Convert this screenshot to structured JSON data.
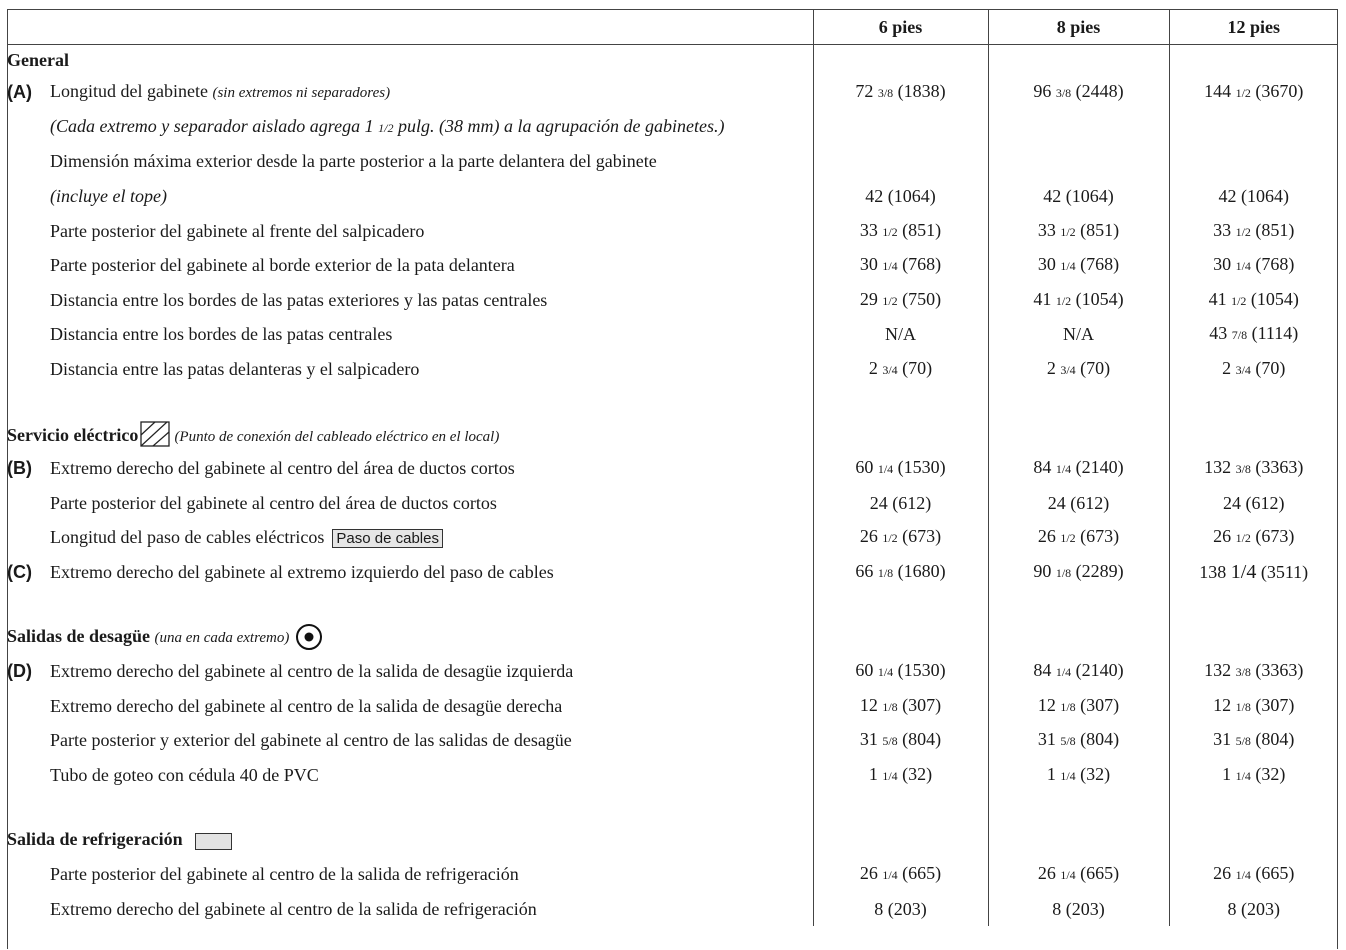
{
  "header": {
    "columns": [
      "6 pies",
      "8 pies",
      "12 pies"
    ]
  },
  "general": {
    "title": "General",
    "cabinet_length": {
      "letter": "(A)",
      "label": "Longitud del gabinete",
      "note": "(sin extremos ni separadores)",
      "values": [
        {
          "whole": "72",
          "frac": "3/8",
          "mm": "(1838)"
        },
        {
          "whole": "96",
          "frac": "3/8",
          "mm": "(2448)"
        },
        {
          "whole": "144",
          "frac": "1/2",
          "mm": "(3670)"
        }
      ]
    },
    "extreme_note": {
      "pre": "(Cada extremo y separador aislado agrega 1",
      "frac": "1/2",
      "post": "pulg. (38 mm) a la agrupación de gabinetes.)"
    },
    "max_dimension": {
      "label": "Dimensión máxima exterior desde la parte posterior a la parte delantera del gabinete",
      "note": "(incluye el tope)",
      "values": [
        "42 (1064)",
        "42 (1064)",
        "42 (1064)"
      ]
    },
    "rows": [
      {
        "label": "Parte posterior del gabinete al frente del salpicadero",
        "values": [
          {
            "whole": "33",
            "frac": "1/2",
            "mm": "(851)"
          },
          {
            "whole": "33",
            "frac": "1/2",
            "mm": "(851)"
          },
          {
            "whole": "33",
            "frac": "1/2",
            "mm": "(851)"
          }
        ]
      },
      {
        "label": "Parte posterior del gabinete al borde exterior de la pata delantera",
        "values": [
          {
            "whole": "30",
            "frac": "1/4",
            "mm": "(768)"
          },
          {
            "whole": "30",
            "frac": "1/4",
            "mm": "(768)"
          },
          {
            "whole": "30",
            "frac": "1/4",
            "mm": "(768)"
          }
        ]
      },
      {
        "label": "Distancia entre los bordes de las patas exteriores y las patas centrales",
        "values": [
          {
            "whole": "29",
            "frac": "1/2",
            "mm": "(750)"
          },
          {
            "whole": "41",
            "frac": "1/2",
            "mm": "(1054)"
          },
          {
            "whole": "41",
            "frac": "1/2",
            "mm": "(1054)"
          }
        ]
      },
      {
        "label": "Distancia entre los bordes de las patas centrales",
        "values": [
          {
            "whole": "N/A",
            "frac": "",
            "mm": ""
          },
          {
            "whole": "N/A",
            "frac": "",
            "mm": ""
          },
          {
            "whole": "43",
            "frac": "7/8",
            "mm": "(1114)"
          }
        ]
      },
      {
        "label": "Distancia entre las patas delanteras y el salpicadero",
        "values": [
          {
            "whole": "2",
            "frac": "3/4",
            "mm": "(70)"
          },
          {
            "whole": "2",
            "frac": "3/4",
            "mm": "(70)"
          },
          {
            "whole": "2",
            "frac": "3/4",
            "mm": "(70)"
          }
        ]
      }
    ]
  },
  "electrical": {
    "title": "Servicio eléctrico",
    "icon": "hatched-square-icon",
    "note": "(Punto de conexión del cableado eléctrico en el local)",
    "rows": [
      {
        "letter": "(B)",
        "label": "Extremo derecho del gabinete al centro del área de ductos cortos",
        "values": [
          {
            "whole": "60",
            "frac": "1/4",
            "mm": "(1530)"
          },
          {
            "whole": "84",
            "frac": "1/4",
            "mm": "(2140)"
          },
          {
            "whole": "132",
            "frac": "3/8",
            "mm": "(3363)"
          }
        ]
      },
      {
        "letter": "",
        "label": "Parte posterior del gabinete al centro del área de ductos cortos",
        "values": [
          {
            "whole": "24",
            "frac": "",
            "mm": "(612)"
          },
          {
            "whole": "24",
            "frac": "",
            "mm": "(612)"
          },
          {
            "whole": "24",
            "frac": "",
            "mm": "(612)"
          }
        ]
      },
      {
        "letter": "",
        "label": "Longitud del paso de cables eléctricos",
        "box_label": "Paso de cables",
        "values": [
          {
            "whole": "26",
            "frac": "1/2",
            "mm": "(673)"
          },
          {
            "whole": "26",
            "frac": "1/2",
            "mm": "(673)"
          },
          {
            "whole": "26",
            "frac": "1/2",
            "mm": "(673)"
          }
        ]
      },
      {
        "letter": "(C)",
        "label": "Extremo derecho del gabinete al extremo izquierdo del paso de cables",
        "values": [
          {
            "whole": "66",
            "frac": "1/8",
            "mm": "(1680)"
          },
          {
            "whole": "90",
            "frac": "1/8",
            "mm": "(2289)"
          },
          {
            "whole": "138",
            "frac": "1/4",
            "mm": "(3511)"
          }
        ]
      }
    ]
  },
  "drains": {
    "title": "Salidas de desagüe",
    "note": "(una en cada extremo)",
    "icon": "drain-outlet-icon",
    "rows": [
      {
        "letter": "(D)",
        "label": "Extremo derecho del gabinete al centro de la salida de desagüe izquierda",
        "values": [
          {
            "whole": "60",
            "frac": "1/4",
            "mm": "(1530)"
          },
          {
            "whole": "84",
            "frac": "1/4",
            "mm": "(2140)"
          },
          {
            "whole": "132",
            "frac": "3/8",
            "mm": "(3363)"
          }
        ]
      },
      {
        "letter": "",
        "label": "Extremo derecho del gabinete al centro de la salida de desagüe derecha",
        "values": [
          {
            "whole": "12",
            "frac": "1/8",
            "mm": "(307)"
          },
          {
            "whole": "12",
            "frac": "1/8",
            "mm": "(307)"
          },
          {
            "whole": "12",
            "frac": "1/8",
            "mm": "(307)"
          }
        ]
      },
      {
        "letter": "",
        "label": "Parte posterior y exterior del gabinete al centro de las salidas de desagüe",
        "values": [
          {
            "whole": "31",
            "frac": "5/8",
            "mm": "(804)"
          },
          {
            "whole": "31",
            "frac": "5/8",
            "mm": "(804)"
          },
          {
            "whole": "31",
            "frac": "5/8",
            "mm": "(804)"
          }
        ]
      },
      {
        "letter": "",
        "label": "Tubo de goteo con cédula 40 de PVC",
        "values": [
          {
            "whole": "1",
            "frac": "1/4",
            "mm": "(32)"
          },
          {
            "whole": "1",
            "frac": "1/4",
            "mm": "(32)"
          },
          {
            "whole": "1",
            "frac": "1/4",
            "mm": "(32)"
          }
        ]
      }
    ]
  },
  "refrigeration": {
    "title": "Salida de refrigeración",
    "swatch_color": "#e3e3e3",
    "rows": [
      {
        "letter": "",
        "label": "Parte posterior del gabinete al centro de la salida de refrigeración",
        "values": [
          {
            "whole": "26",
            "frac": "1/4",
            "mm": "(665)"
          },
          {
            "whole": "26",
            "frac": "1/4",
            "mm": "(665)"
          },
          {
            "whole": "26",
            "frac": "1/4",
            "mm": "(665)"
          }
        ]
      },
      {
        "letter": "",
        "label": "Extremo derecho del gabinete al centro de la salida de refrigeración",
        "values": [
          {
            "whole": "8",
            "frac": "",
            "mm": "(203)"
          },
          {
            "whole": "8",
            "frac": "",
            "mm": "(203)"
          },
          {
            "whole": "8",
            "frac": "",
            "mm": "(203)"
          }
        ]
      }
    ]
  }
}
